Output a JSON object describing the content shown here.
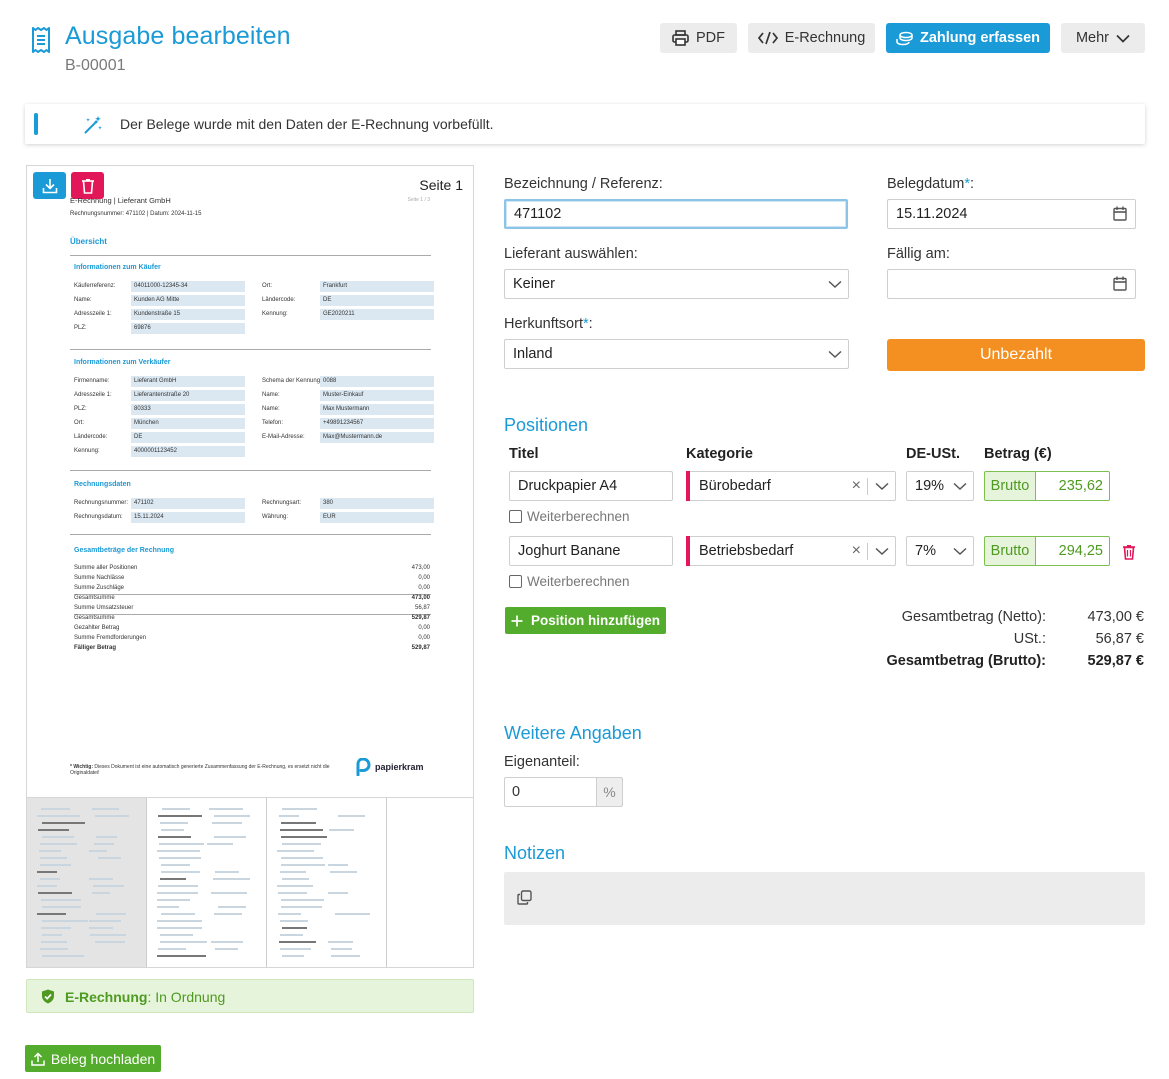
{
  "header": {
    "title": "Ausgabe bearbeiten",
    "subtitle": "B-00001",
    "pdf_label": "PDF",
    "erechnung_label": "E-Rechnung",
    "zahlung_label": "Zahlung erfassen",
    "mehr_label": "Mehr"
  },
  "banner": {
    "text": "Der Belege wurde mit den Daten der E-Rechnung vorbefüllt."
  },
  "preview": {
    "page_label": "Seite 1",
    "doc": {
      "heading": "E-Rechnung | Lieferant GmbH",
      "page_of": "Seite 1 / 3",
      "meta": "Rechnungsnummer: 471102 | Datum: 2024-11-15",
      "overview": "Übersicht",
      "buyer_title": "Informationen zum Käufer",
      "buyer_left": [
        {
          "label": "Käuferreferenz:",
          "value": "04011000-12345-34"
        },
        {
          "label": "Name:",
          "value": "Kunden AG Mitte"
        },
        {
          "label": "Adresszeile 1:",
          "value": "Kundenstraße 15"
        },
        {
          "label": "PLZ:",
          "value": "69876"
        }
      ],
      "buyer_right": [
        {
          "label": "Ort:",
          "value": "Frankfurt"
        },
        {
          "label": "Ländercode:",
          "value": "DE"
        },
        {
          "label": "Kennung:",
          "value": "GE2020211"
        }
      ],
      "seller_title": "Informationen zum Verkäufer",
      "seller_left": [
        {
          "label": "Firmenname:",
          "value": "Lieferant GmbH"
        },
        {
          "label": "Adresszeile 1:",
          "value": "Lieferantenstraße 20"
        },
        {
          "label": "PLZ:",
          "value": "80333"
        },
        {
          "label": "Ort:",
          "value": "München"
        },
        {
          "label": "Ländercode:",
          "value": "DE"
        },
        {
          "label": "Kennung:",
          "value": "4000001123452"
        }
      ],
      "seller_right": [
        {
          "label": "Schema der Kennung:",
          "value": "0088"
        },
        {
          "label": "Name:",
          "value": "Muster-Einkauf"
        },
        {
          "label": "Name:",
          "value": "Max Mustermann"
        },
        {
          "label": "Telefon:",
          "value": "+49891234567"
        },
        {
          "label": "E-Mail-Adresse:",
          "value": "Max@Mustermann.de"
        }
      ],
      "invoice_title": "Rechnungsdaten",
      "invoice_left": [
        {
          "label": "Rechnungsnummer:",
          "value": "471102"
        },
        {
          "label": "Rechnungsdatum:",
          "value": "15.11.2024"
        }
      ],
      "invoice_right": [
        {
          "label": "Rechnungsart:",
          "value": "380"
        },
        {
          "label": "Währung:",
          "value": "EUR"
        }
      ],
      "totals_title": "Gesamtbeträge der Rechnung",
      "totals": [
        {
          "label": "Summe aller Positionen",
          "value": "473,00",
          "bold": false
        },
        {
          "label": "Summe Nachlässe",
          "value": "0,00",
          "bold": false
        },
        {
          "label": "Summe Zuschläge",
          "value": "0,00",
          "bold": false
        },
        {
          "label": "Gesamtsumme",
          "value": "473,00",
          "bold": false
        },
        {
          "label": "Summe Umsatzsteuer",
          "value": "56,87",
          "bold": false
        },
        {
          "label": "Gesamtsumme",
          "value": "529,87",
          "bold": false
        },
        {
          "label": "Gezahlter Betrag",
          "value": "0,00",
          "bold": false
        },
        {
          "label": "Summe Fremdforderungen",
          "value": "0,00",
          "bold": false
        },
        {
          "label": "Fälliger Betrag",
          "value": "529,87",
          "bold": true
        }
      ],
      "footer_note_bold": "* Wichtig:",
      "footer_note": "Dieses Dokument ist eine automatisch generierte Zusammenfassung der E-Rechnung, es ersetzt nicht die Originaldatei!",
      "logo_text": "papierkram"
    }
  },
  "status": {
    "prefix": "E-Rechnung",
    "text": ": In Ordnung"
  },
  "upload_label": "Beleg hochladen",
  "form": {
    "bezeichnung_label": "Bezeichnung / Referenz:",
    "bezeichnung_value": "471102",
    "belegdatum_label": "Belegdatum",
    "belegdatum_value": "15.11.2024",
    "lieferant_label": "Lieferant auswählen:",
    "lieferant_value": "Keiner",
    "faellig_label": "Fällig am:",
    "faellig_value": "",
    "herkunft_label": "Herkunftsort",
    "herkunft_value": "Inland",
    "status_button": "Unbezahlt",
    "required_mark": "*",
    "colon": ":"
  },
  "positions": {
    "title": "Positionen",
    "col_titel": "Titel",
    "col_kategorie": "Kategorie",
    "col_ust": "DE-USt.",
    "col_betrag": "Betrag (€)",
    "rows": [
      {
        "titel": "Druckpapier A4",
        "kategorie": "Bürobedarf",
        "ust": "19%",
        "brutto_label": "Brutto",
        "betrag": "235,62",
        "weiter": "Weiterberechnen"
      },
      {
        "titel": "Joghurt Banane",
        "kategorie": "Betriebsbedarf",
        "ust": "7%",
        "brutto_label": "Brutto",
        "betrag": "294,25",
        "weiter": "Weiterberechnen"
      }
    ],
    "add_label": "Position hinzufügen"
  },
  "totals": {
    "netto_label": "Gesamtbetrag (Netto):",
    "netto_value": "473,00 €",
    "ust_label": "USt.:",
    "ust_value": "56,87 €",
    "brutto_label": "Gesamtbetrag (Brutto):",
    "brutto_value": "529,87 €"
  },
  "weitere": {
    "title": "Weitere Angaben",
    "eigenanteil_label": "Eigenanteil:",
    "eigenanteil_value": "0",
    "suffix": "%"
  },
  "notizen": {
    "title": "Notizen"
  },
  "colors": {
    "accent": "#1a9ad6",
    "success": "#54ac2c",
    "danger": "#e2175a",
    "warning": "#f39021"
  }
}
